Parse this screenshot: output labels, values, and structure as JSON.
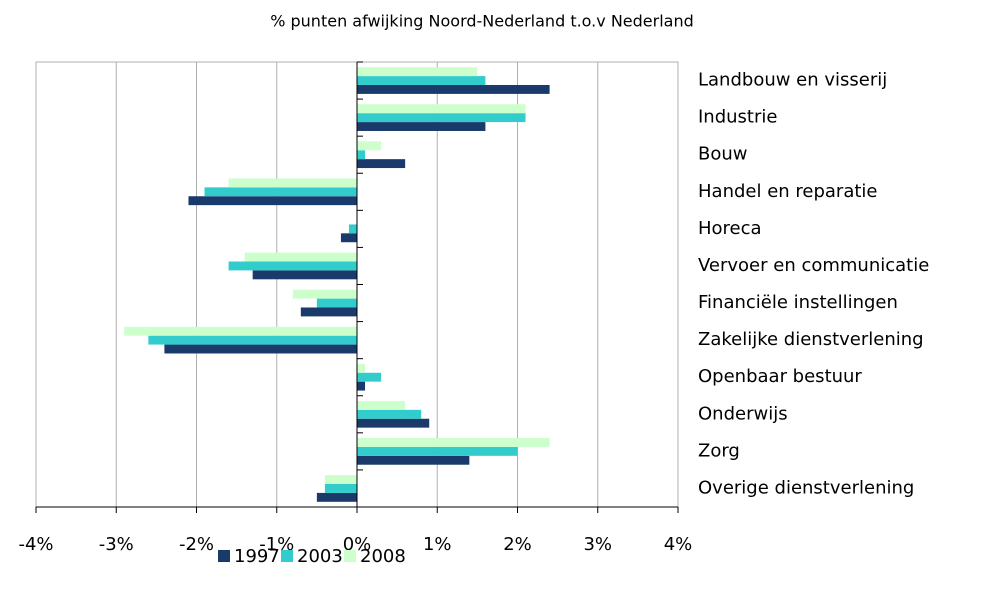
{
  "chart_data": {
    "type": "hbar",
    "title": "% punten afwijking Noord-Nederland t.o.v Nederland",
    "categories": [
      "Landbouw en visserij",
      "Industrie",
      "Bouw",
      "Handel en reparatie",
      "Horeca",
      "Vervoer en communicatie",
      "Financiële instellingen",
      "Zakelijke dienstverlening",
      "Openbaar bestuur",
      "Onderwijs",
      "Zorg",
      "Overige dienstverlening"
    ],
    "series": [
      {
        "name": "1997",
        "color": "#1a3a6b",
        "values": [
          2.4,
          1.6,
          0.6,
          -2.1,
          -0.2,
          -1.3,
          -0.7,
          -2.4,
          0.1,
          0.9,
          1.4,
          -0.5
        ]
      },
      {
        "name": "2003",
        "color": "#33cccc",
        "values": [
          1.6,
          2.1,
          0.1,
          -1.9,
          -0.1,
          -1.6,
          -0.5,
          -2.6,
          0.3,
          0.8,
          2.0,
          -0.4
        ]
      },
      {
        "name": "2008",
        "color": "#ccffcc",
        "values": [
          1.5,
          2.1,
          0.3,
          -1.6,
          0,
          -1.4,
          -0.8,
          -2.9,
          0.1,
          0.6,
          2.4,
          -0.4
        ]
      }
    ],
    "xlim": [
      -4,
      4
    ],
    "xticks": [
      {
        "value": -4,
        "label": "-4%"
      },
      {
        "value": -3,
        "label": "-3%"
      },
      {
        "value": -2,
        "label": "-2%"
      },
      {
        "value": -1,
        "label": "-1%"
      },
      {
        "value": 0,
        "label": "0%"
      },
      {
        "value": 1,
        "label": "1%"
      },
      {
        "value": 2,
        "label": "2%"
      },
      {
        "value": 3,
        "label": "3%"
      },
      {
        "value": 4,
        "label": "4%"
      }
    ],
    "grid": true,
    "legend": "bottom"
  }
}
